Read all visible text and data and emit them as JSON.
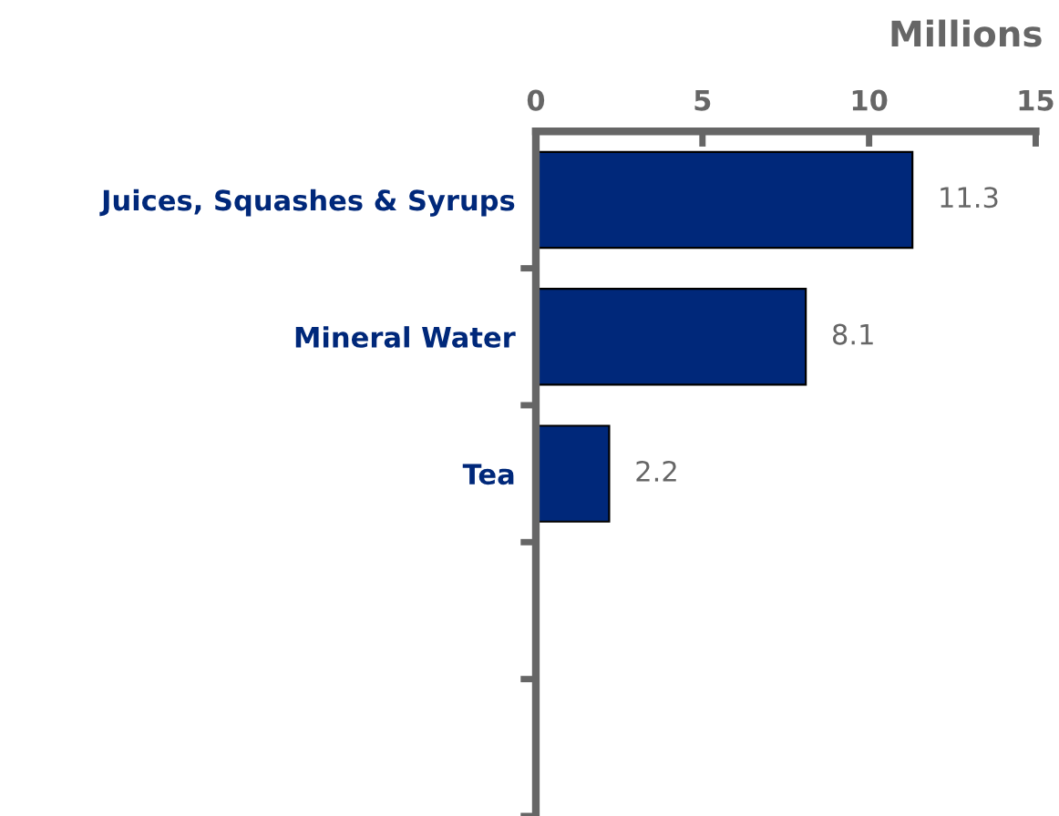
{
  "chart_data": {
    "type": "bar",
    "orientation": "horizontal",
    "xlabel": "Millions",
    "categories": [
      "Juices, Squashes & Syrups",
      "Mineral Water",
      "Tea",
      null,
      null
    ],
    "values": [
      11.3,
      8.1,
      2.2,
      null,
      null
    ],
    "color": "#00287a",
    "xlim": [
      0,
      15
    ],
    "xticks": [
      0,
      5,
      10,
      15
    ],
    "grid": false,
    "legend": false,
    "data_labels": true
  }
}
